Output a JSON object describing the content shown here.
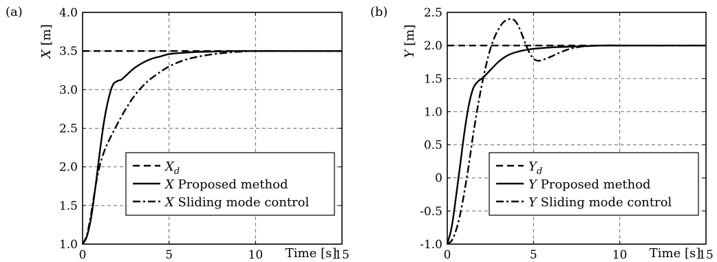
{
  "chart_data": [
    {
      "type": "line",
      "panel_label": "(a)",
      "xlabel": "Time [s]",
      "ylabel": "X [m]",
      "ylabel_var": "X",
      "ylabel_unit": " [m]",
      "xlim": [
        0,
        15
      ],
      "ylim": [
        1.0,
        4.0
      ],
      "xticks": [
        "0",
        "5",
        "10",
        "15"
      ],
      "yticks": [
        "1.0",
        "1.5",
        "2.0",
        "2.5",
        "3.0",
        "3.5",
        "4.0"
      ],
      "grid": true,
      "legend_position": "lower-right",
      "series": [
        {
          "name": "X_d",
          "legend_var": "X",
          "legend_sub": "d",
          "legend_text": "",
          "style": "dashed",
          "x": [
            0,
            15
          ],
          "y": [
            3.5,
            3.5
          ]
        },
        {
          "name": "X Proposed method",
          "legend_var": "X",
          "legend_sub": "",
          "legend_text": " Proposed method",
          "style": "solid",
          "x": [
            0,
            0.25,
            0.5,
            0.75,
            1.0,
            1.25,
            1.5,
            1.75,
            2.0,
            2.25,
            2.5,
            3.0,
            3.5,
            4.0,
            4.5,
            5.0,
            6.0,
            7.0,
            8.0,
            9.0,
            10.0,
            12.0,
            15.0
          ],
          "y": [
            1.0,
            1.1,
            1.35,
            1.75,
            2.2,
            2.6,
            2.88,
            3.06,
            3.11,
            3.13,
            3.18,
            3.28,
            3.35,
            3.4,
            3.43,
            3.46,
            3.48,
            3.49,
            3.495,
            3.5,
            3.5,
            3.5,
            3.5
          ]
        },
        {
          "name": "X Sliding mode control",
          "legend_var": "X",
          "legend_sub": "",
          "legend_text": " Sliding mode control",
          "style": "dashdot",
          "x": [
            0,
            0.25,
            0.5,
            0.75,
            1.0,
            1.25,
            1.5,
            2.0,
            2.5,
            3.0,
            3.5,
            4.0,
            5.0,
            6.0,
            7.0,
            8.0,
            9.0,
            10.0,
            12.0,
            15.0
          ],
          "y": [
            1.0,
            1.12,
            1.4,
            1.75,
            2.02,
            2.2,
            2.33,
            2.55,
            2.75,
            2.92,
            3.05,
            3.15,
            3.3,
            3.39,
            3.44,
            3.47,
            3.49,
            3.5,
            3.5,
            3.5
          ]
        }
      ]
    },
    {
      "type": "line",
      "panel_label": "(b)",
      "xlabel": "Time [s]",
      "ylabel": "Y [m]",
      "ylabel_var": "Y",
      "ylabel_unit": " [m]",
      "xlim": [
        0,
        15
      ],
      "ylim": [
        -1.0,
        2.5
      ],
      "xticks": [
        "0",
        "5",
        "10",
        "15"
      ],
      "yticks": [
        "-1.0",
        "-0.5",
        "0",
        "0.5",
        "1.0",
        "1.5",
        "2.0",
        "2.5"
      ],
      "grid": true,
      "legend_position": "lower-right",
      "series": [
        {
          "name": "Y_d",
          "legend_var": "Y",
          "legend_sub": "d",
          "legend_text": "",
          "style": "dashed",
          "x": [
            0,
            15
          ],
          "y": [
            2.0,
            2.0
          ]
        },
        {
          "name": "Y Proposed method",
          "legend_var": "Y",
          "legend_sub": "",
          "legend_text": " Proposed method",
          "style": "solid",
          "x": [
            0,
            0.25,
            0.5,
            0.75,
            1.0,
            1.25,
            1.5,
            1.75,
            2.0,
            2.25,
            2.5,
            3.0,
            3.5,
            4.0,
            4.5,
            5.0,
            6.0,
            7.0,
            8.0,
            9.0,
            10.0,
            12.0,
            15.0
          ],
          "y": [
            -1.0,
            -0.75,
            -0.3,
            0.2,
            0.7,
            1.1,
            1.35,
            1.45,
            1.5,
            1.56,
            1.63,
            1.76,
            1.85,
            1.9,
            1.93,
            1.95,
            1.97,
            1.98,
            1.99,
            2.0,
            2.0,
            2.0,
            2.0
          ]
        },
        {
          "name": "Y Sliding mode control",
          "legend_var": "Y",
          "legend_sub": "",
          "legend_text": " Sliding mode control",
          "style": "dashdot",
          "x": [
            0,
            0.25,
            0.5,
            0.75,
            1.0,
            1.25,
            1.5,
            1.75,
            2.0,
            2.25,
            2.5,
            2.75,
            3.0,
            3.25,
            3.5,
            3.75,
            4.0,
            4.25,
            4.5,
            4.75,
            5.0,
            5.25,
            5.5,
            6.0,
            6.5,
            7.0,
            7.5,
            8.0,
            9.0,
            10.0,
            12.0,
            15.0
          ],
          "y": [
            -1.0,
            -0.95,
            -0.8,
            -0.55,
            -0.2,
            0.2,
            0.65,
            1.05,
            1.4,
            1.7,
            1.95,
            2.13,
            2.26,
            2.35,
            2.39,
            2.4,
            2.35,
            2.22,
            2.05,
            1.9,
            1.8,
            1.77,
            1.78,
            1.83,
            1.89,
            1.94,
            1.97,
            1.99,
            2.0,
            2.0,
            2.0,
            2.0
          ]
        }
      ]
    }
  ]
}
